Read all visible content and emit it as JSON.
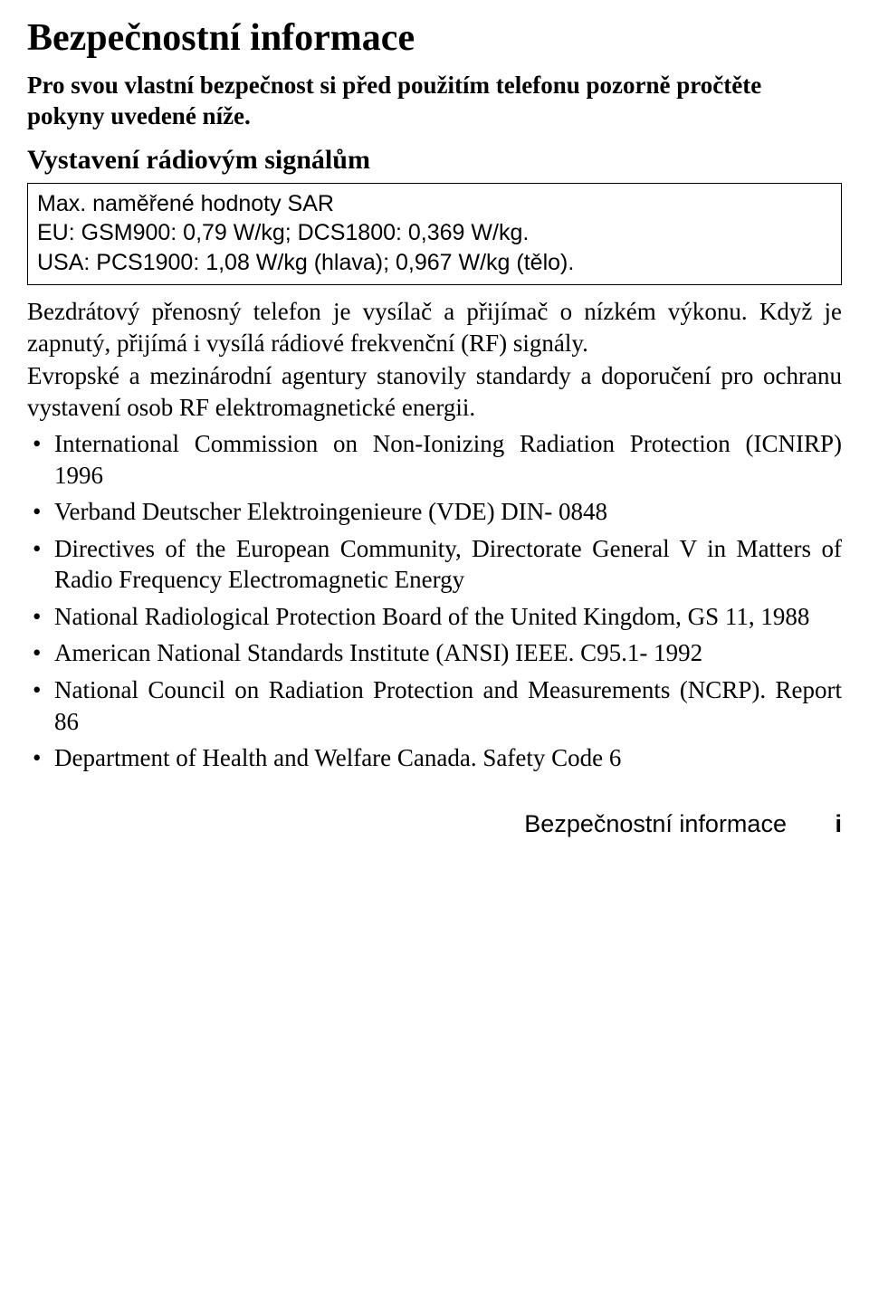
{
  "title": "Bezpečnostní informace",
  "intro": "Pro svou vlastní bezpečnost si před použitím telefonu pozorně pročtěte pokyny uvedené níže.",
  "section_heading": "Vystavení rádiovým signálům",
  "box": {
    "line1": "Max. naměřené hodnoty SAR",
    "line2": "EU: GSM900: 0,79 W/kg; DCS1800: 0,369 W/kg.",
    "line3": "USA: PCS1900: 1,08 W/kg (hlava); 0,967 W/kg (tělo)."
  },
  "para1": "Bezdrátový přenosný telefon je vysílač a přijímač o nízkém výkonu. Když je zapnutý, přijímá i vysílá rádiové frekvenční (RF) signály.",
  "para2": "Evropské a mezinárodní agentury stanovily standardy a doporučení pro ochranu vystavení osob RF elektromagnetické energii.",
  "bullets": [
    "International Commission on Non-Ionizing Radiation Protection (ICNIRP) 1996",
    "Verband Deutscher Elektroingenieure (VDE) DIN- 0848",
    "Directives of the European Community, Directorate General V in Matters of Radio Frequency Electromagnetic Energy",
    "National Radiological Protection Board of the United Kingdom, GS 11, 1988",
    "American National Standards Institute (ANSI) IEEE. C95.1- 1992",
    "National Council on Radiation Protection and Measurements (NCRP). Report 86",
    "Department of Health and Welfare Canada. Safety Code 6"
  ],
  "footer_text": "Bezpečnostní informace",
  "footer_page": "i"
}
